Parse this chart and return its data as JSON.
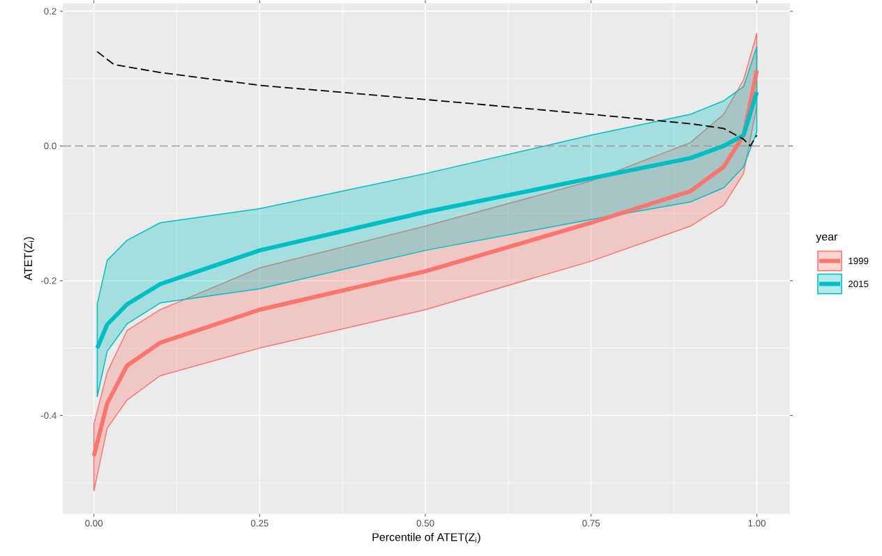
{
  "chart_data": {
    "type": "line",
    "xlabel": "Percentile of ATET(Z$_{i}$)",
    "ylabel": "ATET(Z$_{i}$)",
    "legend_title": "year",
    "xlim": [
      -0.047,
      1.05
    ],
    "ylim": [
      -0.546,
      0.212
    ],
    "xticks": [
      {
        "value": 0,
        "label": "0.00"
      },
      {
        "value": 0.25,
        "label": "0.25"
      },
      {
        "value": 0.5,
        "label": "0.50"
      },
      {
        "value": 0.75,
        "label": "0.75"
      },
      {
        "value": 1,
        "label": "1.00"
      }
    ],
    "yticks": [
      -0.4,
      -0.2,
      {
        "value": 0,
        "label": "0.0"
      },
      0.2
    ],
    "grid": true,
    "legend": "right",
    "ref_lines": [
      {
        "axis": "y",
        "value": 0,
        "color": "#999999",
        "line_style": "dashed"
      }
    ],
    "series": [
      {
        "name": "1999",
        "color": "#f8766d",
        "x": [
          0.0,
          0.02,
          0.05,
          0.1,
          0.25,
          0.5,
          0.75,
          0.9,
          0.95,
          0.98,
          1.0
        ],
        "values": [
          -0.46,
          -0.382,
          -0.326,
          -0.292,
          -0.243,
          -0.186,
          -0.114,
          -0.067,
          -0.031,
          0.016,
          0.112
        ],
        "lower": [
          -0.512,
          -0.419,
          -0.377,
          -0.341,
          -0.3,
          -0.243,
          -0.171,
          -0.119,
          -0.088,
          -0.041,
          0.059
        ],
        "upper": [
          -0.413,
          -0.336,
          -0.274,
          -0.243,
          -0.181,
          -0.119,
          -0.052,
          0.005,
          0.047,
          0.098,
          0.167
        ]
      },
      {
        "name": "2015",
        "color": "#00bfc4",
        "x": [
          0.005,
          0.02,
          0.05,
          0.1,
          0.25,
          0.5,
          0.75,
          0.9,
          0.95,
          0.98,
          1.0
        ],
        "values": [
          -0.3,
          -0.265,
          -0.235,
          -0.205,
          -0.155,
          -0.098,
          -0.048,
          -0.018,
          0.0,
          0.016,
          0.08
        ],
        "lower": [
          -0.372,
          -0.305,
          -0.264,
          -0.233,
          -0.212,
          -0.155,
          -0.109,
          -0.083,
          -0.062,
          -0.031,
          0.021
        ],
        "upper": [
          -0.235,
          -0.17,
          -0.14,
          -0.114,
          -0.093,
          -0.041,
          0.016,
          0.047,
          0.067,
          0.088,
          0.147
        ]
      },
      {
        "color": "#000000",
        "line_style": "dashed",
        "x": [
          0.005,
          0.03,
          0.1,
          0.25,
          0.5,
          0.75,
          0.9,
          0.95,
          0.98,
          0.99,
          1.0
        ],
        "values": [
          0.14,
          0.121,
          0.109,
          0.09,
          0.069,
          0.047,
          0.033,
          0.026,
          0.01,
          0.0,
          0.016
        ]
      }
    ]
  }
}
